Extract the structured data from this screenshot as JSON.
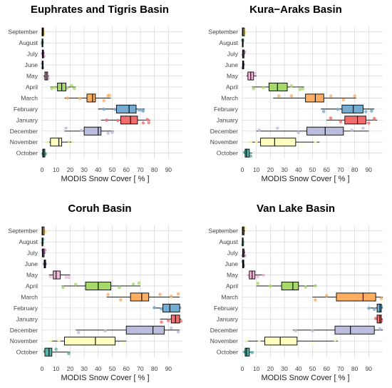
{
  "categories": [
    "September",
    "August",
    "July",
    "June",
    "May",
    "April",
    "March",
    "February",
    "January",
    "December",
    "November",
    "October"
  ],
  "colors": {
    "September": "#ffe066",
    "August": "#66c2a5",
    "July": "#c77fcc",
    "June": "#9e9ac8",
    "May": "#f4b6da",
    "April": "#a6d96a",
    "March": "#fdae61",
    "February": "#74add1",
    "January": "#f46d6d",
    "December": "#bcbddc",
    "November": "#ffffbf",
    "October": "#5ab4ac"
  },
  "chart_data": [
    {
      "type": "boxplot",
      "title": "Euphrates and Tigris Basin",
      "xlabel": "MODIS Snow Cover [ % ]",
      "xlim": [
        0,
        100
      ],
      "xticks": [
        0,
        10,
        20,
        30,
        40,
        50,
        60,
        70,
        80,
        90
      ],
      "series": [
        {
          "month": "September",
          "min": 0,
          "q1": 0,
          "median": 0.5,
          "q3": 1,
          "max": 1.5,
          "points": [
            0.3,
            0.6,
            0.9,
            1.2
          ]
        },
        {
          "month": "August",
          "min": 0,
          "q1": 0,
          "median": 0.2,
          "q3": 0.4,
          "max": 0.6,
          "points": [
            0.1,
            0.3
          ]
        },
        {
          "month": "July",
          "min": 0,
          "q1": 0.2,
          "median": 0.5,
          "q3": 1,
          "max": 1.4,
          "points": [
            0.3,
            0.8,
            1.2
          ]
        },
        {
          "month": "June",
          "min": 0,
          "q1": 0.1,
          "median": 0.3,
          "q3": 0.6,
          "max": 1,
          "points": [
            0.2,
            0.5
          ]
        },
        {
          "month": "May",
          "min": 1,
          "q1": 2,
          "median": 3,
          "q3": 4,
          "max": 5,
          "points": [
            2,
            3.5,
            4.5
          ]
        },
        {
          "month": "April",
          "min": 6,
          "q1": 11,
          "median": 14,
          "q3": 17,
          "max": 24,
          "points": [
            7,
            9,
            12,
            15,
            18,
            21,
            23
          ]
        },
        {
          "month": "March",
          "min": 16,
          "q1": 32,
          "median": 36,
          "q3": 38,
          "max": 49,
          "points": [
            18,
            27,
            33,
            36,
            44,
            47,
            48
          ]
        },
        {
          "month": "February",
          "min": 40,
          "q1": 53,
          "median": 62,
          "q3": 67,
          "max": 73,
          "points": [
            44,
            52,
            58,
            65,
            69,
            71,
            72
          ]
        },
        {
          "month": "January",
          "min": 42,
          "q1": 56,
          "median": 63,
          "q3": 68,
          "max": 77,
          "points": [
            46,
            54,
            60,
            66,
            72,
            75,
            76
          ]
        },
        {
          "month": "December",
          "min": 16,
          "q1": 30,
          "median": 40,
          "q3": 42,
          "max": 51,
          "points": [
            17,
            28,
            35,
            41,
            47,
            50
          ]
        },
        {
          "month": "November",
          "min": 3,
          "q1": 6,
          "median": 12,
          "q3": 14,
          "max": 23,
          "points": [
            4,
            9,
            13,
            19,
            22
          ]
        },
        {
          "month": "October",
          "min": 0,
          "q1": 0.5,
          "median": 1,
          "q3": 2,
          "max": 3,
          "points": [
            0.5,
            1.5,
            2.5
          ]
        }
      ]
    },
    {
      "type": "boxplot",
      "title": "Kura−Araks Basin",
      "xlabel": "MODIS Snow Cover [ % ]",
      "xlim": [
        0,
        100
      ],
      "xticks": [
        0,
        10,
        20,
        30,
        40,
        50,
        60,
        70,
        80,
        90
      ],
      "series": [
        {
          "month": "September",
          "min": 0,
          "q1": 0,
          "median": 0.5,
          "q3": 1.5,
          "max": 2,
          "points": [
            0.5,
            1,
            1.5
          ]
        },
        {
          "month": "August",
          "min": 0,
          "q1": 0,
          "median": 0.2,
          "q3": 0.5,
          "max": 0.8,
          "points": [
            0.2,
            0.4
          ]
        },
        {
          "month": "July",
          "min": 0,
          "q1": 0.2,
          "median": 0.5,
          "q3": 1.2,
          "max": 1.8,
          "points": [
            0.4,
            1,
            1.5
          ]
        },
        {
          "month": "June",
          "min": 0,
          "q1": 0.2,
          "median": 0.5,
          "q3": 1,
          "max": 1.5,
          "points": [
            0.3,
            0.8
          ]
        },
        {
          "month": "May",
          "min": 3,
          "q1": 4,
          "median": 6,
          "q3": 8,
          "max": 10,
          "points": [
            4,
            7,
            9
          ]
        },
        {
          "month": "April",
          "min": 7,
          "q1": 19,
          "median": 25,
          "q3": 32,
          "max": 44,
          "points": [
            8,
            15,
            22,
            28,
            35,
            41,
            43
          ]
        },
        {
          "month": "March",
          "min": 22,
          "q1": 45,
          "median": 52,
          "q3": 58,
          "max": 81,
          "points": [
            26,
            35,
            48,
            55,
            63,
            72,
            80
          ]
        },
        {
          "month": "February",
          "min": 56,
          "q1": 71,
          "median": 79,
          "q3": 86,
          "max": 94,
          "points": [
            58,
            68,
            75,
            82,
            88,
            92
          ]
        },
        {
          "month": "January",
          "min": 60,
          "q1": 73,
          "median": 82,
          "q3": 88,
          "max": 96,
          "points": [
            63,
            70,
            78,
            85,
            90,
            94
          ]
        },
        {
          "month": "December",
          "min": 10,
          "q1": 46,
          "median": 59,
          "q3": 72,
          "max": 90,
          "points": [
            12,
            25,
            40,
            55,
            65,
            78,
            86
          ]
        },
        {
          "month": "November",
          "min": 5,
          "q1": 13,
          "median": 23,
          "q3": 38,
          "max": 55,
          "points": [
            6,
            10,
            20,
            30,
            42,
            52
          ]
        },
        {
          "month": "October",
          "min": 1,
          "q1": 2,
          "median": 3,
          "q3": 5,
          "max": 7,
          "points": [
            1.5,
            3,
            4.5,
            6
          ]
        }
      ]
    },
    {
      "type": "boxplot",
      "title": "Coruh Basin",
      "xlabel": "MODIS Snow Cover [ % ]",
      "xlim": [
        0,
        100
      ],
      "xticks": [
        0,
        10,
        20,
        30,
        40,
        50,
        60,
        70,
        80,
        90
      ],
      "series": [
        {
          "month": "September",
          "min": 0,
          "q1": 0,
          "median": 0.5,
          "q3": 1.5,
          "max": 2.5,
          "points": [
            0.5,
            1.2,
            2
          ]
        },
        {
          "month": "August",
          "min": 0,
          "q1": 0,
          "median": 0.2,
          "q3": 0.6,
          "max": 1,
          "points": [
            0.3,
            0.7
          ]
        },
        {
          "month": "July",
          "min": 0,
          "q1": 0.2,
          "median": 0.6,
          "q3": 1.5,
          "max": 2.5,
          "points": [
            0.5,
            1.2,
            2
          ]
        },
        {
          "month": "June",
          "min": 1,
          "q1": 1.5,
          "median": 2,
          "q3": 2.5,
          "max": 3,
          "points": [
            1.5,
            2.5
          ]
        },
        {
          "month": "May",
          "min": 5,
          "q1": 8,
          "median": 10,
          "q3": 13,
          "max": 20,
          "points": [
            6,
            9,
            12,
            17,
            19
          ]
        },
        {
          "month": "April",
          "min": 14,
          "q1": 31,
          "median": 40,
          "q3": 49,
          "max": 70,
          "points": [
            15,
            24,
            35,
            44,
            55,
            65,
            69
          ]
        },
        {
          "month": "March",
          "min": 46,
          "q1": 63,
          "median": 71,
          "q3": 76,
          "max": 98,
          "points": [
            47,
            56,
            68,
            74,
            84,
            92,
            97
          ]
        },
        {
          "month": "February",
          "min": 79,
          "q1": 86,
          "median": 91,
          "q3": 98,
          "max": 99,
          "points": [
            80,
            85,
            90,
            95,
            98
          ]
        },
        {
          "month": "January",
          "min": 84,
          "q1": 92,
          "median": 95,
          "q3": 98,
          "max": 99,
          "points": [
            85,
            90,
            94,
            97,
            99
          ]
        },
        {
          "month": "December",
          "min": 24,
          "q1": 60,
          "median": 79,
          "q3": 87,
          "max": 98,
          "points": [
            26,
            45,
            65,
            75,
            85,
            92,
            97
          ]
        },
        {
          "month": "November",
          "min": 5,
          "q1": 16,
          "median": 38,
          "q3": 52,
          "max": 60,
          "points": [
            6,
            12,
            25,
            40,
            50,
            58
          ]
        },
        {
          "month": "October",
          "min": 1,
          "q1": 2,
          "median": 5,
          "q3": 7,
          "max": 20,
          "points": [
            2,
            4,
            6,
            10,
            19
          ]
        }
      ]
    },
    {
      "type": "boxplot",
      "title": "Van Lake Basin",
      "xlabel": "MODIS Snow Cover [ % ]",
      "xlim": [
        0,
        100
      ],
      "xticks": [
        0,
        10,
        20,
        30,
        40,
        50,
        60,
        70,
        80,
        90
      ],
      "series": [
        {
          "month": "September",
          "min": 0,
          "q1": 0,
          "median": 0.5,
          "q3": 1.2,
          "max": 2,
          "points": [
            0.5,
            1,
            1.6
          ]
        },
        {
          "month": "August",
          "min": 0,
          "q1": 0,
          "median": 0.2,
          "q3": 0.5,
          "max": 0.8,
          "points": [
            0.2,
            0.5
          ]
        },
        {
          "month": "July",
          "min": 0,
          "q1": 0.2,
          "median": 0.5,
          "q3": 1.2,
          "max": 2,
          "points": [
            0.4,
            1,
            1.7
          ]
        },
        {
          "month": "June",
          "min": 0,
          "q1": 0.2,
          "median": 0.5,
          "q3": 1,
          "max": 1.5,
          "points": [
            0.3,
            0.9
          ]
        },
        {
          "month": "May",
          "min": 4,
          "q1": 5,
          "median": 7,
          "q3": 9,
          "max": 16,
          "points": [
            5,
            8,
            11,
            15
          ]
        },
        {
          "month": "April",
          "min": 10,
          "q1": 28,
          "median": 36,
          "q3": 40,
          "max": 53,
          "points": [
            11,
            20,
            30,
            38,
            45,
            52
          ]
        },
        {
          "month": "March",
          "min": 50,
          "q1": 67,
          "median": 86,
          "q3": 95,
          "max": 100,
          "points": [
            52,
            60,
            75,
            88,
            94,
            99
          ]
        },
        {
          "month": "February",
          "min": 90,
          "q1": 96,
          "median": 98,
          "q3": 99,
          "max": 100,
          "points": [
            90,
            94,
            97,
            99
          ]
        },
        {
          "month": "January",
          "min": 95,
          "q1": 96,
          "median": 98,
          "q3": 99,
          "max": 100,
          "points": [
            95,
            97,
            99
          ]
        },
        {
          "month": "December",
          "min": 36,
          "q1": 66,
          "median": 77,
          "q3": 94,
          "max": 100,
          "points": [
            38,
            50,
            70,
            82,
            92,
            98
          ]
        },
        {
          "month": "November",
          "min": 2,
          "q1": 16,
          "median": 27,
          "q3": 39,
          "max": 68,
          "points": [
            3,
            12,
            22,
            35,
            50,
            66
          ]
        },
        {
          "month": "October",
          "min": 1,
          "q1": 2,
          "median": 3,
          "q3": 5,
          "max": 8,
          "points": [
            1.5,
            3,
            4.5,
            7
          ]
        }
      ]
    }
  ]
}
